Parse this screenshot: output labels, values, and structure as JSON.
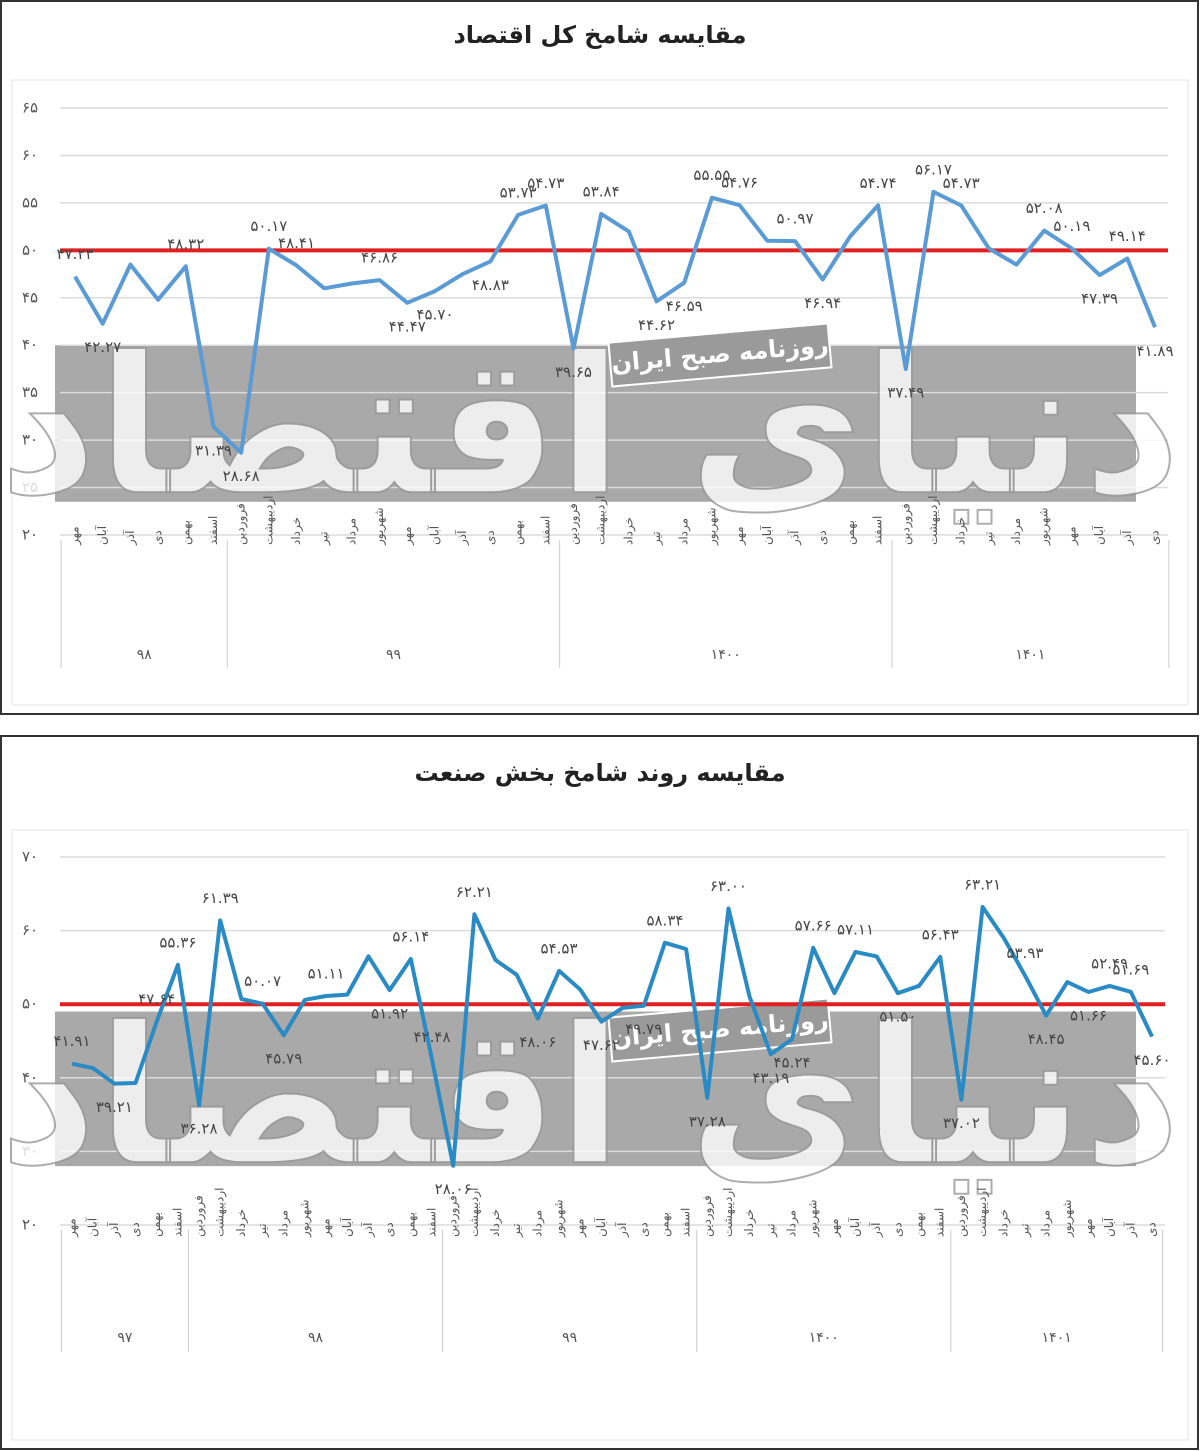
{
  "chart_data": [
    {
      "type": "line",
      "title": "مقایسه شامخ کل اقتصاد",
      "categories": [
        "مهر",
        "آبان",
        "آذر",
        "دی",
        "بهمن",
        "اسفند",
        "فروردین",
        "اردیبهشت",
        "خرداد",
        "تیر",
        "مرداد",
        "شهریور",
        "مهر",
        "آبان",
        "آذر",
        "دی",
        "بهمن",
        "اسفند",
        "فروردین",
        "اردیبهشت",
        "خرداد",
        "تیر",
        "مرداد",
        "شهریور",
        "مهر",
        "آبان",
        "آذر",
        "دی",
        "بهمن",
        "اسفند",
        "فروردین",
        "اردیبهشت",
        "خرداد",
        "تیر",
        "مرداد",
        "شهریور",
        "مهر",
        "آبان",
        "آذر",
        "دی"
      ],
      "groups": [
        {
          "label": "۹۸",
          "span": 6
        },
        {
          "label": "۹۹",
          "span": 12
        },
        {
          "label": "۱۴۰۰",
          "span": 12
        },
        {
          "label": "۱۴۰۱",
          "span": 10
        }
      ],
      "series": [
        {
          "color": "#5b9bd5",
          "values": [
            47.23,
            42.27,
            48.5,
            44.8,
            48.32,
            31.39,
            28.68,
            50.17,
            48.41,
            46.0,
            46.5,
            46.86,
            44.47,
            45.7,
            47.5,
            48.83,
            53.73,
            54.73,
            39.65,
            53.84,
            52.0,
            44.62,
            46.59,
            55.55,
            54.76,
            51.0,
            50.97,
            46.94,
            51.5,
            54.74,
            37.49,
            56.17,
            54.73,
            50.2,
            48.5,
            52.08,
            50.19,
            47.39,
            49.14,
            41.89
          ],
          "value_labels": [
            "۴۷.۲۳",
            "۴۲.۲۷",
            null,
            null,
            "۴۸.۳۲",
            "۳۱.۳۹",
            "۲۸.۶۸",
            "۵۰.۱۷",
            "۴۸.۴۱",
            null,
            null,
            "۴۶.۸۶",
            "۴۴.۴۷",
            "۴۵.۷۰",
            null,
            "۴۸.۸۳",
            "۵۳.۷۳",
            "۵۴.۷۳",
            "۳۹.۶۵",
            "۵۳.۸۴",
            null,
            "۴۴.۶۲",
            "۴۶.۵۹",
            "۵۵.۵۵",
            "۵۴.۷۶",
            null,
            "۵۰.۹۷",
            "۴۶.۹۴",
            null,
            "۵۴.۷۴",
            "۳۷.۴۹",
            "۵۶.۱۷",
            "۵۴.۷۳",
            null,
            null,
            "۵۲.۰۸",
            "۵۰.۱۹",
            "۴۷.۳۹",
            "۴۹.۱۴",
            "۴۱.۸۹"
          ]
        }
      ],
      "ylim": [
        20,
        65
      ],
      "yticks": [
        {
          "value": 20,
          "label": "۲۰"
        },
        {
          "value": 25,
          "label": "۲۵"
        },
        {
          "value": 30,
          "label": "۳۰"
        },
        {
          "value": 35,
          "label": "۳۵"
        },
        {
          "value": 40,
          "label": "۴۰"
        },
        {
          "value": 45,
          "label": "۴۵"
        },
        {
          "value": 50,
          "label": "۵۰"
        },
        {
          "value": 55,
          "label": "۵۵"
        },
        {
          "value": 60,
          "label": "۶۰"
        },
        {
          "value": 65,
          "label": "۶۵"
        }
      ],
      "grid": true,
      "reference_line": {
        "value": 50,
        "color": "#e02020"
      },
      "band": [
        23.5,
        40
      ],
      "watermark": "دنیای اقتصاد",
      "stamp": "روزنامه صبح ایران"
    },
    {
      "type": "line",
      "title": "مقایسه روند شامخ بخش صنعت",
      "categories": [
        "مهر",
        "آبان",
        "آذر",
        "دی",
        "بهمن",
        "اسفند",
        "فروردین",
        "اردیبهشت",
        "خرداد",
        "تیر",
        "مرداد",
        "شهریور",
        "مهر",
        "آبان",
        "آذر",
        "دی",
        "بهمن",
        "اسفند",
        "فروردین",
        "اردیبهشت",
        "خرداد",
        "تیر",
        "مرداد",
        "شهریور",
        "مهر",
        "آبان",
        "آذر",
        "دی",
        "بهمن",
        "اسفند",
        "فروردین",
        "اردیبهشت",
        "خرداد",
        "تیر",
        "مرداد",
        "شهریور",
        "مهر",
        "آبان",
        "آذر",
        "دی",
        "بهمن",
        "اسفند",
        "فروردین",
        "اردیبهشت",
        "خرداد",
        "تیر",
        "مرداد",
        "شهریور",
        "مهر",
        "آبان",
        "آذر",
        "دی"
      ],
      "groups": [
        {
          "label": "۹۷",
          "span": 6
        },
        {
          "label": "۹۸",
          "span": 12
        },
        {
          "label": "۹۹",
          "span": 12
        },
        {
          "label": "۱۴۰۰",
          "span": 12
        },
        {
          "label": "۱۴۰۱",
          "span": 10
        }
      ],
      "series": [
        {
          "color": "#2a8bc4",
          "values": [
            41.91,
            41.3,
            39.21,
            39.3,
            47.64,
            55.36,
            36.28,
            61.39,
            50.7,
            50.07,
            45.79,
            50.6,
            51.11,
            51.3,
            56.5,
            51.92,
            56.14,
            42.48,
            28.06,
            62.21,
            56.0,
            54.0,
            48.06,
            54.53,
            52.0,
            47.62,
            49.5,
            49.79,
            58.34,
            57.5,
            37.28,
            63.0,
            51.0,
            43.19,
            45.24,
            57.66,
            51.5,
            57.11,
            56.5,
            51.5,
            52.5,
            56.43,
            37.02,
            63.21,
            59.0,
            53.93,
            48.45,
            53.0,
            51.66,
            52.49,
            51.69,
            45.6
          ],
          "value_labels": [
            "۴۱.۹۱",
            null,
            "۳۹.۲۱",
            null,
            "۴۷.۶۴",
            "۵۵.۳۶",
            "۳۶.۲۸",
            "۶۱.۳۹",
            null,
            "۵۰.۰۷",
            "۴۵.۷۹",
            null,
            "۵۱.۱۱",
            null,
            null,
            "۵۱.۹۲",
            "۵۶.۱۴",
            "۴۲.۴۸",
            "۲۸.۰۶",
            "۶۲.۲۱",
            null,
            null,
            "۴۸.۰۶",
            "۵۴.۵۳",
            null,
            "۴۷.۶۲",
            null,
            "۴۹.۷۹",
            "۵۸.۳۴",
            null,
            "۳۷.۲۸",
            "۶۳.۰۰",
            null,
            "۴۳.۱۹",
            "۴۵.۲۴",
            "۵۷.۶۶",
            null,
            "۵۷.۱۱",
            null,
            "۵۱.۵۰",
            null,
            "۵۶.۴۳",
            "۳۷.۰۲",
            "۶۳.۲۱",
            null,
            "۵۳.۹۳",
            "۴۸.۴۵",
            null,
            "۵۱.۶۶",
            "۵۲.۴۹",
            "۵۱.۶۹",
            "۴۵.۶۰"
          ]
        }
      ],
      "ylim": [
        20,
        70
      ],
      "yticks": [
        {
          "value": 20,
          "label": "۲۰"
        },
        {
          "value": 30,
          "label": "۳۰"
        },
        {
          "value": 40,
          "label": "۴۰"
        },
        {
          "value": 50,
          "label": "۵۰"
        },
        {
          "value": 60,
          "label": "۶۰"
        },
        {
          "value": 70,
          "label": "۷۰"
        }
      ],
      "grid": true,
      "reference_line": {
        "value": 50,
        "color": "#e02020"
      },
      "band": [
        28,
        49
      ],
      "watermark": "دنیای اقتصاد",
      "stamp": "روزنامه صبح ایران"
    }
  ]
}
